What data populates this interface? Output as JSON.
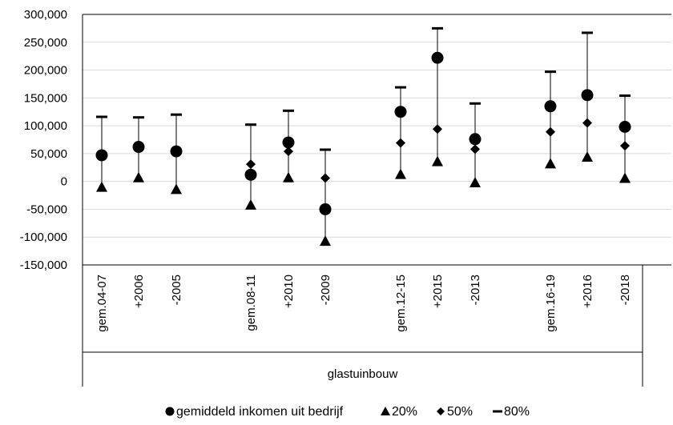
{
  "chart_data": {
    "type": "scatter",
    "title": "",
    "xlabel": "",
    "ylabel": "",
    "ylim": [
      -150000,
      300000
    ],
    "y_ticks": [
      "300,000",
      "250,000",
      "200,000",
      "150,000",
      "100,000",
      "50,000",
      "0",
      "-50,000",
      "-100,000",
      "-150,000"
    ],
    "group_label": "glastuinbouw",
    "categories": [
      "gem.04-07",
      "+2006",
      "-2005",
      "gem.08-11",
      "+2010",
      "-2009",
      "gem.12-15",
      "+2015",
      "-2013",
      "gem.16-19",
      "+2016",
      "-2018"
    ],
    "series": [
      {
        "name": "gemiddeld inkomen uit bedrijf",
        "marker": "circle",
        "values": [
          47000,
          62000,
          54000,
          12000,
          70000,
          -50000,
          125000,
          222000,
          76000,
          135000,
          155000,
          98000
        ]
      },
      {
        "name": "20%",
        "marker": "triangle",
        "values": [
          -10000,
          7000,
          -14000,
          -42000,
          7000,
          -107000,
          13000,
          36000,
          -2000,
          32000,
          44000,
          6000
        ]
      },
      {
        "name": "50%",
        "marker": "diamond",
        "values": [
          null,
          59000,
          null,
          31000,
          54000,
          6000,
          69000,
          94000,
          58000,
          89000,
          105000,
          64000
        ]
      },
      {
        "name": "80%",
        "marker": "dash",
        "values": [
          116000,
          115000,
          120000,
          102000,
          127000,
          57000,
          169000,
          275000,
          140000,
          197000,
          267000,
          154000
        ]
      }
    ],
    "grid": true,
    "legend_position": "bottom"
  }
}
